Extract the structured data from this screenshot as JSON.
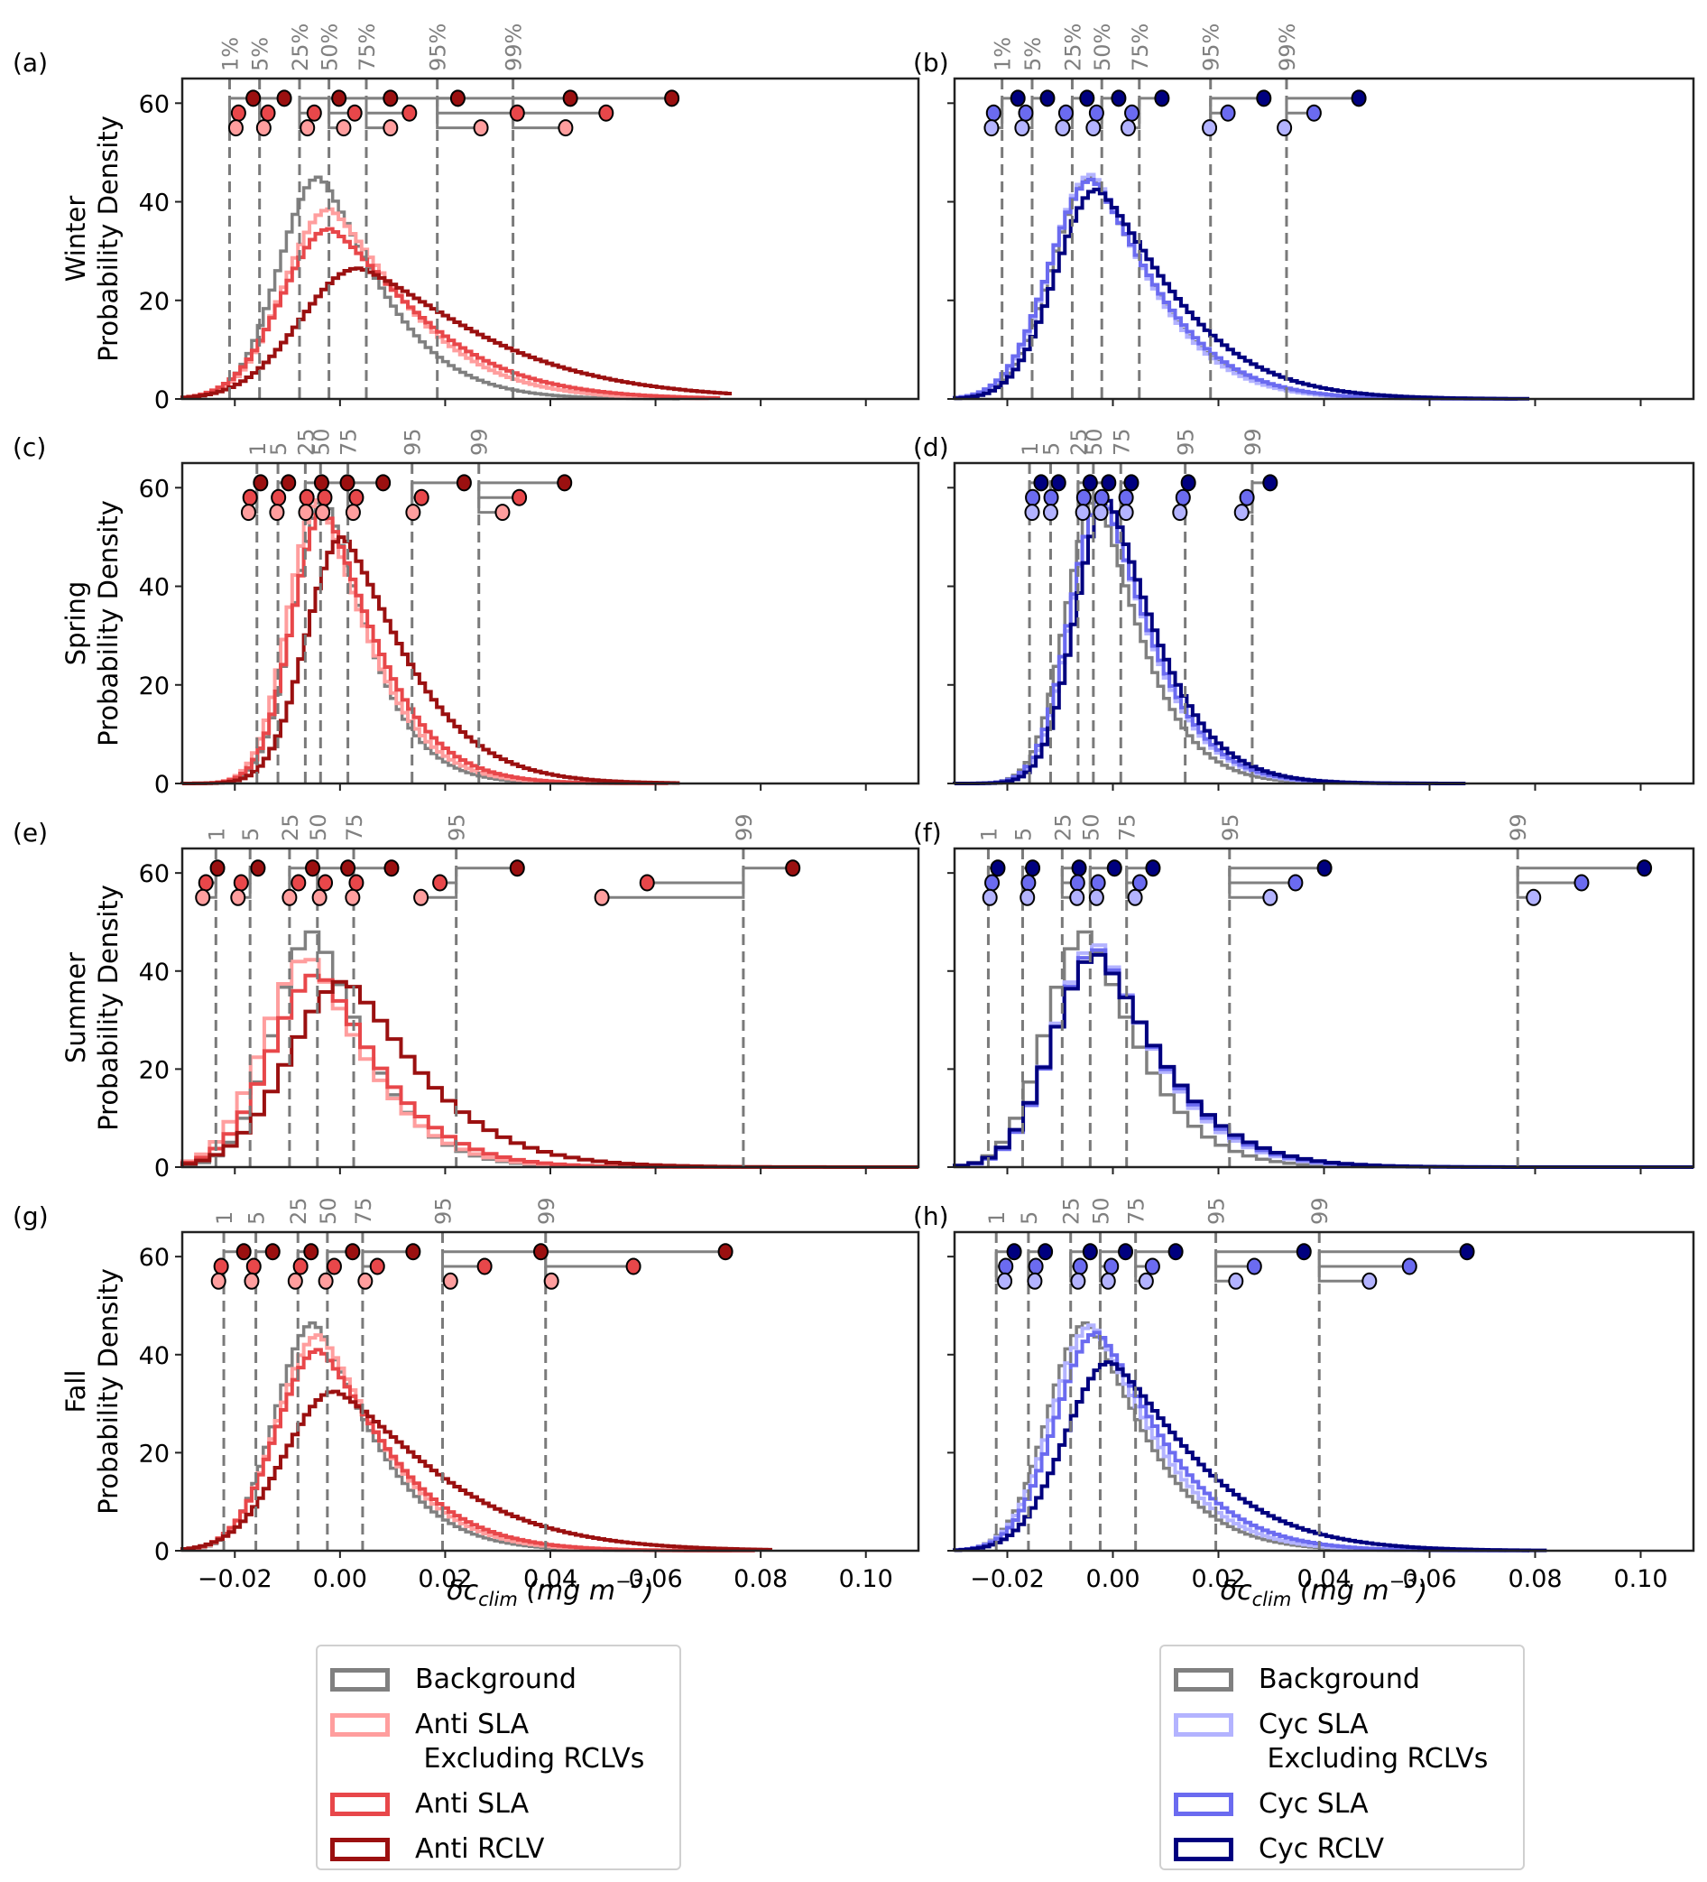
{
  "chart_data": {
    "type": "histogram-step",
    "xlim": [
      -0.03,
      0.11
    ],
    "ylim": [
      0,
      65
    ],
    "xticks": [
      -0.02,
      0.0,
      0.02,
      0.04,
      0.06,
      0.08,
      0.1
    ],
    "xtick_labels": [
      "−0.02",
      "0.00",
      "0.02",
      "0.04",
      "0.06",
      "0.08",
      "0.10"
    ],
    "yticks": [
      0,
      20,
      40,
      60
    ],
    "ytick_labels": [
      "0",
      "20",
      "40",
      "60"
    ],
    "xlabel": "δc",
    "xlabel_sub": "clim",
    "xlabel_units": " (mg  m",
    "xlabel_sup": "−3",
    "xlabel_close": ")",
    "ylabel_suffix": "Probability Density",
    "quantiles": [
      1,
      5,
      25,
      50,
      75,
      95,
      99
    ],
    "quantile_dot_levels": [
      61,
      58,
      55
    ],
    "colors": {
      "Background": "#808080",
      "Anti SLA Excluding RCLVs": "#ff9e9e",
      "Anti SLA": "#e8474a",
      "Anti RCLV": "#9b1010",
      "Cyc SLA Excluding RCLVs": "#b3b3ff",
      "Cyc SLA": "#6b6bf0",
      "Cyc RCLV": "#00007f"
    },
    "panels": [
      {
        "id": "a",
        "letter": "(a)",
        "season": "Winter",
        "side": "anti",
        "quantile_labels": [
          "1%",
          "5%",
          "25%",
          "50%",
          "75%",
          "95%",
          "99%"
        ],
        "background_quantiles": [
          -0.021,
          -0.0153,
          -0.0077,
          -0.0021,
          0.005,
          0.0185,
          0.0329
        ],
        "series": [
          {
            "name": "Background",
            "mode": -0.004,
            "peak": 45,
            "spread_left": 0.0075,
            "spread_right": 0.011,
            "xmax": 0.064
          },
          {
            "name": "Anti SLA Excluding RCLVs",
            "mode": -0.002,
            "peak": 38.5,
            "spread_left": 0.0085,
            "spread_right": 0.0135,
            "xmax": 0.07
          },
          {
            "name": "Anti SLA",
            "mode": -0.002,
            "peak": 34.5,
            "spread_left": 0.009,
            "spread_right": 0.0155,
            "xmax": 0.072
          },
          {
            "name": "Anti RCLV",
            "mode": 0.0035,
            "peak": 26.5,
            "spread_left": 0.011,
            "spread_right": 0.021,
            "xmax": 0.074
          }
        ],
        "dot_quantiles": [
          {
            "name": "Anti RCLV",
            "values": [
              -0.0165,
              -0.0106,
              -0.0002,
              0.0096,
              0.0224,
              0.0438,
              0.0631
            ]
          },
          {
            "name": "Anti SLA",
            "values": [
              -0.0193,
              -0.0137,
              -0.0049,
              0.0028,
              0.0132,
              0.0337,
              0.0506
            ]
          },
          {
            "name": "Anti SLA Excluding RCLVs",
            "values": [
              -0.0198,
              -0.0145,
              -0.0062,
              0.0007,
              0.0096,
              0.0268,
              0.0429
            ]
          }
        ]
      },
      {
        "id": "b",
        "letter": "(b)",
        "season": "Winter",
        "side": "cyc",
        "quantile_labels": [
          "1%",
          "5%",
          "25%",
          "50%",
          "75%",
          "95%",
          "99%"
        ],
        "background_quantiles": [
          -0.021,
          -0.0153,
          -0.0077,
          -0.0021,
          0.005,
          0.0185,
          0.0329
        ],
        "series": [
          {
            "name": "Background",
            "mode": -0.004,
            "peak": 45,
            "spread_left": 0.0075,
            "spread_right": 0.011,
            "xmax": 0.064
          },
          {
            "name": "Cyc SLA Excluding RCLVs",
            "mode": -0.004,
            "peak": 45.5,
            "spread_left": 0.0078,
            "spread_right": 0.0108,
            "xmax": 0.074
          },
          {
            "name": "Cyc SLA",
            "mode": -0.004,
            "peak": 44.5,
            "spread_left": 0.008,
            "spread_right": 0.0115,
            "xmax": 0.076
          },
          {
            "name": "Cyc RCLV",
            "mode": -0.003,
            "peak": 42.5,
            "spread_left": 0.0078,
            "spread_right": 0.0135,
            "xmax": 0.078
          }
        ],
        "dot_quantiles": [
          {
            "name": "Cyc RCLV",
            "values": [
              -0.018,
              -0.0124,
              -0.0049,
              0.0011,
              0.0093,
              0.0286,
              0.0466
            ]
          },
          {
            "name": "Cyc SLA",
            "values": [
              -0.0226,
              -0.0165,
              -0.0089,
              -0.0031,
              0.0036,
              0.0218,
              0.0381
            ]
          },
          {
            "name": "Cyc SLA Excluding RCLVs",
            "values": [
              -0.023,
              -0.0172,
              -0.0095,
              -0.0037,
              0.0029,
              0.0183,
              0.0325
            ]
          }
        ]
      },
      {
        "id": "c",
        "letter": "(c)",
        "season": "Spring",
        "side": "anti",
        "quantile_labels": [
          "1",
          "5",
          "25",
          "50",
          "75",
          "95",
          "99"
        ],
        "background_quantiles": [
          -0.0158,
          -0.0118,
          -0.0066,
          -0.0037,
          0.0015,
          0.0137,
          0.0264
        ],
        "series": [
          {
            "name": "Background",
            "mode": -0.003,
            "peak": 58,
            "spread_left": 0.0058,
            "spread_right": 0.008,
            "xmax": 0.054
          },
          {
            "name": "Anti SLA Excluding RCLVs",
            "mode": -0.004,
            "peak": 57.5,
            "spread_left": 0.0058,
            "spread_right": 0.009,
            "xmax": 0.06
          },
          {
            "name": "Anti SLA",
            "mode": -0.003,
            "peak": 55.5,
            "spread_left": 0.006,
            "spread_right": 0.0095,
            "xmax": 0.062
          },
          {
            "name": "Anti RCLV",
            "mode": 0.0005,
            "peak": 50,
            "spread_left": 0.0068,
            "spread_right": 0.0115,
            "xmax": 0.064
          }
        ],
        "dot_quantiles": [
          {
            "name": "Anti RCLV",
            "values": [
              -0.0151,
              -0.0098,
              -0.0035,
              0.0014,
              0.0082,
              0.0236,
              0.0427
            ]
          },
          {
            "name": "Anti SLA",
            "values": [
              -0.0171,
              -0.0117,
              -0.0063,
              -0.0029,
              0.0031,
              0.0155,
              0.0341
            ]
          },
          {
            "name": "Anti SLA Excluding RCLVs",
            "values": [
              -0.0174,
              -0.012,
              -0.0065,
              -0.0033,
              0.0025,
              0.0139,
              0.0309
            ]
          }
        ]
      },
      {
        "id": "d",
        "letter": "(d)",
        "season": "Spring",
        "side": "cyc",
        "quantile_labels": [
          "1",
          "5",
          "25",
          "50",
          "75",
          "95",
          "99"
        ],
        "background_quantiles": [
          -0.0158,
          -0.0118,
          -0.0066,
          -0.0037,
          0.0015,
          0.0137,
          0.0264
        ],
        "series": [
          {
            "name": "Background",
            "mode": -0.003,
            "peak": 58,
            "spread_left": 0.0058,
            "spread_right": 0.008,
            "xmax": 0.054
          },
          {
            "name": "Cyc SLA Excluding RCLVs",
            "mode": -0.002,
            "peak": 58.5,
            "spread_left": 0.0058,
            "spread_right": 0.0085,
            "xmax": 0.064
          },
          {
            "name": "Cyc SLA",
            "mode": -0.002,
            "peak": 58,
            "spread_left": 0.006,
            "spread_right": 0.0088,
            "xmax": 0.066
          },
          {
            "name": "Cyc RCLV",
            "mode": -0.001,
            "peak": 57.5,
            "spread_left": 0.006,
            "spread_right": 0.009,
            "xmax": 0.066
          }
        ],
        "dot_quantiles": [
          {
            "name": "Cyc RCLV",
            "values": [
              -0.0136,
              -0.0103,
              -0.0043,
              -0.0008,
              0.0035,
              0.0143,
              0.0298
            ]
          },
          {
            "name": "Cyc SLA",
            "values": [
              -0.0152,
              -0.0117,
              -0.0055,
              -0.0021,
              0.0025,
              0.0133,
              0.0254
            ]
          },
          {
            "name": "Cyc SLA Excluding RCLVs",
            "values": [
              -0.0153,
              -0.0118,
              -0.0057,
              -0.0023,
              0.0025,
              0.0127,
              0.0244
            ]
          }
        ]
      },
      {
        "id": "e",
        "letter": "(e)",
        "season": "Summer",
        "side": "anti",
        "quantile_labels": [
          "1",
          "5",
          "25",
          "50",
          "75",
          "95",
          "99"
        ],
        "background_quantiles": [
          -0.0236,
          -0.0171,
          -0.0096,
          -0.0043,
          0.0026,
          0.0221,
          0.0767
        ],
        "series": [
          {
            "name": "Background",
            "mode": -0.005,
            "peak": 48,
            "spread_left": 0.0075,
            "spread_right": 0.0095,
            "xmax": 0.11
          },
          {
            "name": "Anti SLA Excluding RCLVs",
            "mode": -0.006,
            "peak": 43,
            "spread_left": 0.0085,
            "spread_right": 0.0105,
            "xmax": 0.11
          },
          {
            "name": "Anti SLA",
            "mode": -0.004,
            "peak": 39.5,
            "spread_left": 0.009,
            "spread_right": 0.011,
            "xmax": 0.11
          },
          {
            "name": "Anti RCLV",
            "mode": 0.001,
            "peak": 38,
            "spread_left": 0.0105,
            "spread_right": 0.0135,
            "xmax": 0.11
          }
        ],
        "dot_quantiles": [
          {
            "name": "Anti RCLV",
            "values": [
              -0.0233,
              -0.0156,
              -0.0052,
              0.0015,
              0.0098,
              0.0337,
              0.0861
            ]
          },
          {
            "name": "Anti SLA",
            "values": [
              -0.0255,
              -0.0188,
              -0.0079,
              -0.0028,
              0.0031,
              0.019,
              0.0584
            ]
          },
          {
            "name": "Anti SLA Excluding RCLVs",
            "values": [
              -0.0261,
              -0.0194,
              -0.0096,
              -0.0039,
              0.0024,
              0.0154,
              0.0498
            ]
          }
        ]
      },
      {
        "id": "f",
        "letter": "(f)",
        "season": "Summer",
        "side": "cyc",
        "quantile_labels": [
          "1",
          "5",
          "25",
          "50",
          "75",
          "95",
          "99"
        ],
        "background_quantiles": [
          -0.0236,
          -0.0171,
          -0.0096,
          -0.0043,
          0.0026,
          0.0221,
          0.0767
        ],
        "series": [
          {
            "name": "Background",
            "mode": -0.005,
            "peak": 48,
            "spread_left": 0.0075,
            "spread_right": 0.0095,
            "xmax": 0.11
          },
          {
            "name": "Cyc SLA Excluding RCLVs",
            "mode": -0.003,
            "peak": 45.5,
            "spread_left": 0.008,
            "spread_right": 0.0105,
            "xmax": 0.11
          },
          {
            "name": "Cyc SLA",
            "mode": -0.003,
            "peak": 44.5,
            "spread_left": 0.008,
            "spread_right": 0.011,
            "xmax": 0.11
          },
          {
            "name": "Cyc RCLV",
            "mode": -0.003,
            "peak": 43.5,
            "spread_left": 0.0082,
            "spread_right": 0.0115,
            "xmax": 0.11
          }
        ],
        "dot_quantiles": [
          {
            "name": "Cyc RCLV",
            "values": [
              -0.0218,
              -0.0152,
              -0.0064,
              0.0003,
              0.0076,
              0.0401,
              0.1007
            ]
          },
          {
            "name": "Cyc SLA",
            "values": [
              -0.0229,
              -0.016,
              -0.0067,
              -0.0028,
              0.0051,
              0.0346,
              0.0888
            ]
          },
          {
            "name": "Cyc SLA Excluding RCLVs",
            "values": [
              -0.0233,
              -0.0162,
              -0.0068,
              -0.0031,
              0.0042,
              0.0298,
              0.0797
            ]
          }
        ]
      },
      {
        "id": "g",
        "letter": "(g)",
        "season": "Fall",
        "side": "anti",
        "quantile_labels": [
          "1",
          "5",
          "25",
          "50",
          "75",
          "95",
          "99"
        ],
        "background_quantiles": [
          -0.0221,
          -0.016,
          -0.008,
          -0.0024,
          0.0043,
          0.0195,
          0.0391
        ],
        "series": [
          {
            "name": "Background",
            "mode": -0.005,
            "peak": 46.5,
            "spread_left": 0.0072,
            "spread_right": 0.0105,
            "xmax": 0.07
          },
          {
            "name": "Anti SLA Excluding RCLVs",
            "mode": -0.004,
            "peak": 44,
            "spread_left": 0.0078,
            "spread_right": 0.0112,
            "xmax": 0.074
          },
          {
            "name": "Anti SLA",
            "mode": -0.004,
            "peak": 41,
            "spread_left": 0.008,
            "spread_right": 0.0122,
            "xmax": 0.078
          },
          {
            "name": "Anti RCLV",
            "mode": -0.001,
            "peak": 32.5,
            "spread_left": 0.0095,
            "spread_right": 0.0175,
            "xmax": 0.082
          }
        ],
        "dot_quantiles": [
          {
            "name": "Anti RCLV",
            "values": [
              -0.0183,
              -0.0128,
              -0.0055,
              0.0024,
              0.0139,
              0.0382,
              0.0733
            ]
          },
          {
            "name": "Anti SLA",
            "values": [
              -0.0226,
              -0.0164,
              -0.0075,
              -0.0011,
              0.0071,
              0.0275,
              0.0558
            ]
          },
          {
            "name": "Anti SLA Excluding RCLVs",
            "values": [
              -0.0231,
              -0.0168,
              -0.0085,
              -0.0027,
              0.0048,
              0.021,
              0.0402
            ]
          }
        ]
      },
      {
        "id": "h",
        "letter": "(h)",
        "season": "Fall",
        "side": "cyc",
        "quantile_labels": [
          "1",
          "5",
          "25",
          "50",
          "75",
          "95",
          "99"
        ],
        "background_quantiles": [
          -0.0221,
          -0.016,
          -0.008,
          -0.0024,
          0.0043,
          0.0195,
          0.0391
        ],
        "series": [
          {
            "name": "Background",
            "mode": -0.005,
            "peak": 46.5,
            "spread_left": 0.0072,
            "spread_right": 0.0105,
            "xmax": 0.07
          },
          {
            "name": "Cyc SLA Excluding RCLVs",
            "mode": -0.004,
            "peak": 46,
            "spread_left": 0.0075,
            "spread_right": 0.011,
            "xmax": 0.074
          },
          {
            "name": "Cyc SLA",
            "mode": -0.003,
            "peak": 44.5,
            "spread_left": 0.0078,
            "spread_right": 0.0118,
            "xmax": 0.078
          },
          {
            "name": "Cyc RCLV",
            "mode": -0.0005,
            "peak": 38.5,
            "spread_left": 0.0085,
            "spread_right": 0.0145,
            "xmax": 0.082
          }
        ],
        "dot_quantiles": [
          {
            "name": "Cyc RCLV",
            "values": [
              -0.0187,
              -0.0128,
              -0.0043,
              0.0024,
              0.0119,
              0.0362,
              0.0671
            ]
          },
          {
            "name": "Cyc SLA",
            "values": [
              -0.0203,
              -0.0146,
              -0.0062,
              -0.0003,
              0.0075,
              0.0268,
              0.0562
            ]
          },
          {
            "name": "Cyc SLA Excluding RCLVs",
            "values": [
              -0.0205,
              -0.0148,
              -0.0066,
              -0.0009,
              0.0063,
              0.0233,
              0.0486
            ]
          }
        ]
      }
    ],
    "legends": [
      {
        "side": "anti",
        "placement": "bottom-left",
        "entries": [
          "Background",
          "Anti SLA\n Excluding RCLVs",
          "Anti SLA",
          "Anti RCLV"
        ],
        "series_keys": [
          "Background",
          "Anti SLA Excluding RCLVs",
          "Anti SLA",
          "Anti RCLV"
        ]
      },
      {
        "side": "cyc",
        "placement": "bottom-right",
        "entries": [
          "Background",
          "Cyc SLA\n Excluding RCLVs",
          "Cyc SLA",
          "Cyc RCLV"
        ],
        "series_keys": [
          "Background",
          "Cyc SLA Excluding RCLVs",
          "Cyc SLA",
          "Cyc RCLV"
        ]
      }
    ]
  }
}
